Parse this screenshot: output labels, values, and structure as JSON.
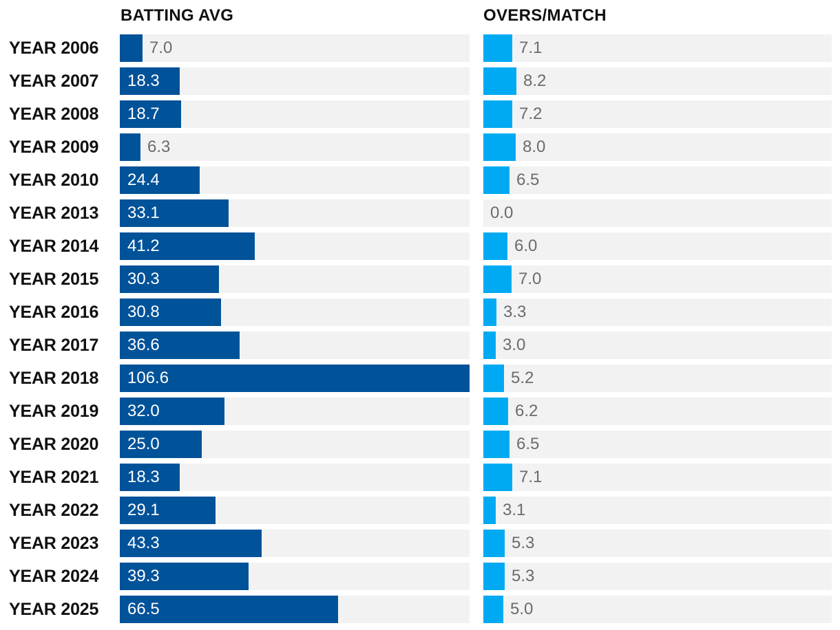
{
  "chart_data": {
    "type": "bar",
    "orientation": "horizontal",
    "categories": [
      "YEAR 2006",
      "YEAR 2007",
      "YEAR 2008",
      "YEAR 2009",
      "YEAR 2010",
      "YEAR 2013",
      "YEAR 2014",
      "YEAR 2015",
      "YEAR 2016",
      "YEAR 2017",
      "YEAR 2018",
      "YEAR 2019",
      "YEAR 2020",
      "YEAR 2021",
      "YEAR 2022",
      "YEAR 2023",
      "YEAR 2024",
      "YEAR 2025"
    ],
    "series": [
      {
        "name": "BATTING AVG",
        "color": "#005299",
        "max": 106.6,
        "values": [
          7.0,
          18.3,
          18.7,
          6.3,
          24.4,
          33.1,
          41.2,
          30.3,
          30.8,
          36.6,
          106.6,
          32.0,
          25.0,
          18.3,
          29.1,
          43.3,
          39.3,
          66.5
        ],
        "labels": [
          "7.0",
          "18.3",
          "18.7",
          "6.3",
          "24.4",
          "33.1",
          "41.2",
          "30.3",
          "30.8",
          "36.6",
          "106.6",
          "32.0",
          "25.0",
          "18.3",
          "29.1",
          "43.3",
          "39.3",
          "66.5"
        ]
      },
      {
        "name": "OVERS/MATCH",
        "color": "#00aaf2",
        "max": 86.4,
        "values": [
          7.1,
          8.2,
          7.2,
          8.0,
          6.5,
          0.0,
          6.0,
          7.0,
          3.3,
          3.0,
          5.2,
          6.2,
          6.5,
          7.1,
          3.1,
          5.3,
          5.3,
          5.0
        ],
        "labels": [
          "7.1",
          "8.2",
          "7.2",
          "8.0",
          "6.5",
          "0.0",
          "6.0",
          "7.0",
          "3.3",
          "3.0",
          "5.2",
          "6.2",
          "6.5",
          "7.1",
          "3.1",
          "5.3",
          "5.3",
          "5.0"
        ]
      }
    ],
    "track_color": "#f2f2f2",
    "inside_label_color": "#ffffff",
    "outside_label_color": "#6b6b6b"
  }
}
